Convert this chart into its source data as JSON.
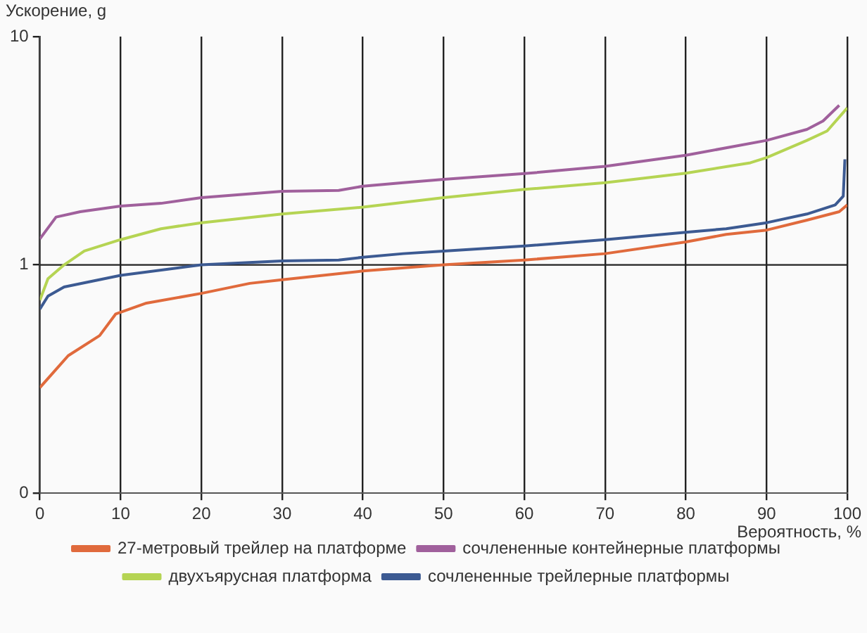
{
  "chart_data": {
    "type": "line",
    "xlabel": "Вероятность, %",
    "ylabel": "Ускорение, g",
    "xlim": [
      0,
      100
    ],
    "xticks": [
      0,
      10,
      20,
      30,
      40,
      50,
      60,
      70,
      80,
      90,
      100
    ],
    "ylim": [
      0.1,
      10
    ],
    "yticks": [
      {
        "value": 0.1,
        "label": "0"
      },
      1,
      10
    ],
    "log": "y",
    "grid": "x",
    "legend": "bottom",
    "marker": "none",
    "ref_lines": [
      {
        "axis": "y",
        "value": 1,
        "color": "#222222"
      }
    ],
    "series": [
      {
        "name": "27-метровый трейлер на платформе",
        "color": "#e06a3c",
        "x": [
          0,
          3.5,
          7.4,
          9.4,
          13.2,
          20,
          26,
          30,
          40,
          50,
          60,
          70,
          80,
          85,
          90,
          95,
          99,
          100
        ],
        "values": [
          0.29,
          0.4,
          0.49,
          0.61,
          0.68,
          0.75,
          0.83,
          0.86,
          0.94,
          1.0,
          1.05,
          1.12,
          1.26,
          1.36,
          1.42,
          1.57,
          1.71,
          1.83
        ]
      },
      {
        "name": "сочлененные контейнерные платформы",
        "color": "#a0609c",
        "x": [
          0,
          2,
          5,
          10,
          15,
          20,
          30,
          37,
          40,
          45,
          50,
          60,
          70,
          80,
          90,
          95,
          97,
          99
        ],
        "values": [
          1.3,
          1.62,
          1.71,
          1.81,
          1.86,
          1.97,
          2.1,
          2.12,
          2.21,
          2.29,
          2.37,
          2.51,
          2.7,
          3.02,
          3.51,
          3.92,
          4.27,
          5.0
        ]
      },
      {
        "name": "двухъярусная платформа",
        "color": "#b5d453",
        "x": [
          0,
          1,
          3,
          5.5,
          10,
          15,
          20,
          30,
          40,
          50,
          60,
          70,
          80,
          88,
          90,
          95,
          97.5,
          100
        ],
        "values": [
          0.7,
          0.87,
          1.0,
          1.15,
          1.29,
          1.44,
          1.53,
          1.67,
          1.79,
          1.97,
          2.14,
          2.29,
          2.52,
          2.8,
          2.95,
          3.51,
          3.86,
          4.87
        ]
      },
      {
        "name": "сочлененные трейлерные платформы",
        "color": "#3c5a92",
        "x": [
          0,
          1,
          3,
          10,
          20,
          30,
          37,
          40,
          45,
          50,
          60,
          70,
          80,
          85,
          90,
          95,
          98.5,
          99.5,
          99.7
        ],
        "values": [
          0.64,
          0.73,
          0.8,
          0.9,
          1.0,
          1.04,
          1.05,
          1.08,
          1.12,
          1.15,
          1.21,
          1.29,
          1.39,
          1.44,
          1.53,
          1.67,
          1.83,
          2.0,
          2.9
        ]
      }
    ]
  }
}
